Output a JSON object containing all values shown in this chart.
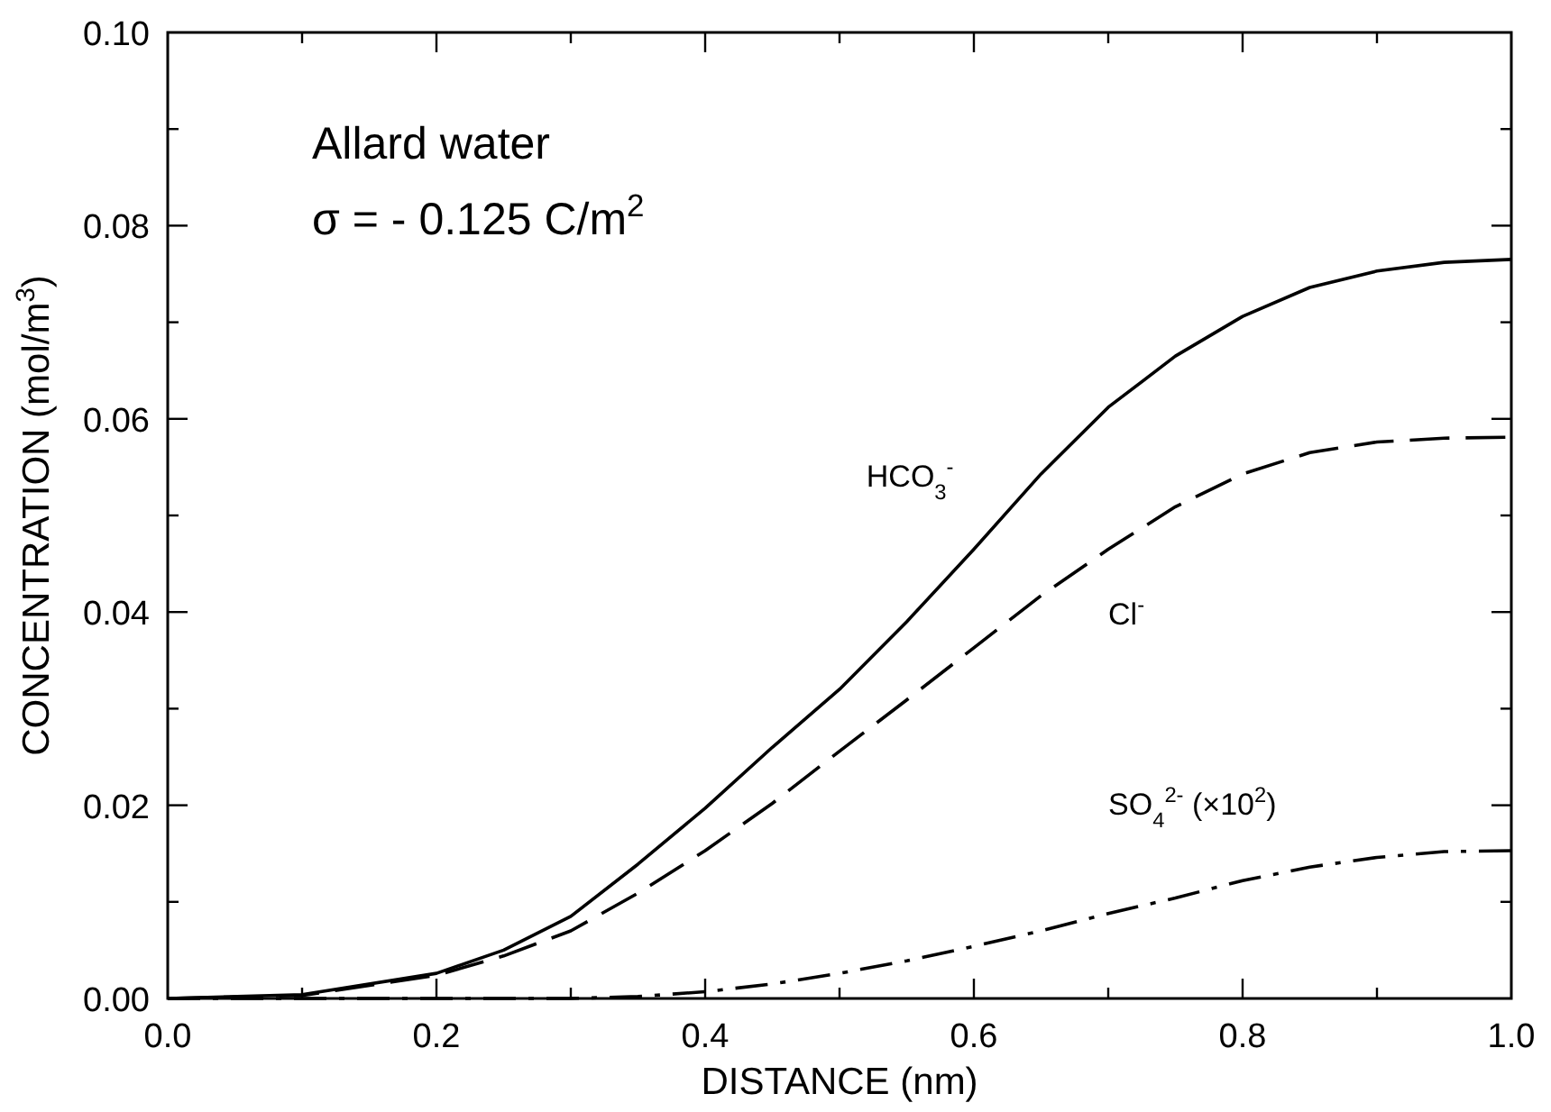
{
  "chart_data": {
    "type": "line",
    "xlabel": "DISTANCE (nm)",
    "ylabel": "CONCENTRATION (mol/m$^{3}$)",
    "x": [
      0,
      0.1,
      0.2,
      0.25,
      0.3,
      0.35,
      0.4,
      0.45,
      0.5,
      0.55,
      0.6,
      0.65,
      0.7,
      0.75,
      0.8,
      0.85,
      0.9,
      0.95,
      1.0
    ],
    "series": [
      {
        "name": "HCO$_{3}$$^{-}$",
        "color": "#000000",
        "line_style": "solid",
        "values": [
          0,
          0.0004,
          0.0026,
          0.005,
          0.0085,
          0.0139,
          0.0197,
          0.026,
          0.032,
          0.039,
          0.0465,
          0.0543,
          0.0612,
          0.0665,
          0.0706,
          0.0736,
          0.0753,
          0.0762,
          0.0765
        ]
      },
      {
        "name": "Cl$^{-}$",
        "color": "#000000",
        "line_style": "dashed",
        "values": [
          0,
          0.0003,
          0.0024,
          0.0044,
          0.007,
          0.0109,
          0.0153,
          0.0202,
          0.0256,
          0.0309,
          0.0363,
          0.0417,
          0.0465,
          0.0509,
          0.0543,
          0.0565,
          0.0576,
          0.058,
          0.0581
        ]
      },
      {
        "name": "SO$_{4}$$^{2-}$ (×10$^{2}$)",
        "color": "#000000",
        "line_style": "dashdot",
        "values": [
          0,
          0,
          0,
          0,
          0,
          0.0002,
          0.0007,
          0.0015,
          0.0026,
          0.0039,
          0.0054,
          0.007,
          0.0088,
          0.0104,
          0.0122,
          0.0136,
          0.0146,
          0.0152,
          0.0153
        ]
      }
    ],
    "xlim": [
      0,
      1
    ],
    "ylim": [
      0,
      0.1
    ],
    "xticks": [
      {
        "value": 0,
        "label": "0.0"
      },
      {
        "value": 0.1,
        "label": null
      },
      {
        "value": 0.2,
        "label": "0.2"
      },
      {
        "value": 0.3,
        "label": null
      },
      {
        "value": 0.4,
        "label": "0.4"
      },
      {
        "value": 0.5,
        "label": null
      },
      {
        "value": 0.6,
        "label": "0.6"
      },
      {
        "value": 0.7,
        "label": null
      },
      {
        "value": 0.8,
        "label": "0.8"
      },
      {
        "value": 0.9,
        "label": null
      },
      {
        "value": 1,
        "label": "1.0"
      }
    ],
    "yticks": [
      {
        "value": 0,
        "label": "0.00"
      },
      {
        "value": 0.01,
        "label": null
      },
      {
        "value": 0.02,
        "label": "0.02"
      },
      {
        "value": 0.03,
        "label": null
      },
      {
        "value": 0.04,
        "label": "0.04"
      },
      {
        "value": 0.05,
        "label": null
      },
      {
        "value": 0.06,
        "label": "0.06"
      },
      {
        "value": 0.07,
        "label": null
      },
      {
        "value": 0.08,
        "label": "0.08"
      },
      {
        "value": 0.09,
        "label": null
      },
      {
        "value": 0.1,
        "label": "0.10"
      }
    ],
    "grid": false,
    "marker": "none",
    "annotations": [
      "Allard water",
      "σ = - 0.125 C/m$^{2}$"
    ]
  }
}
